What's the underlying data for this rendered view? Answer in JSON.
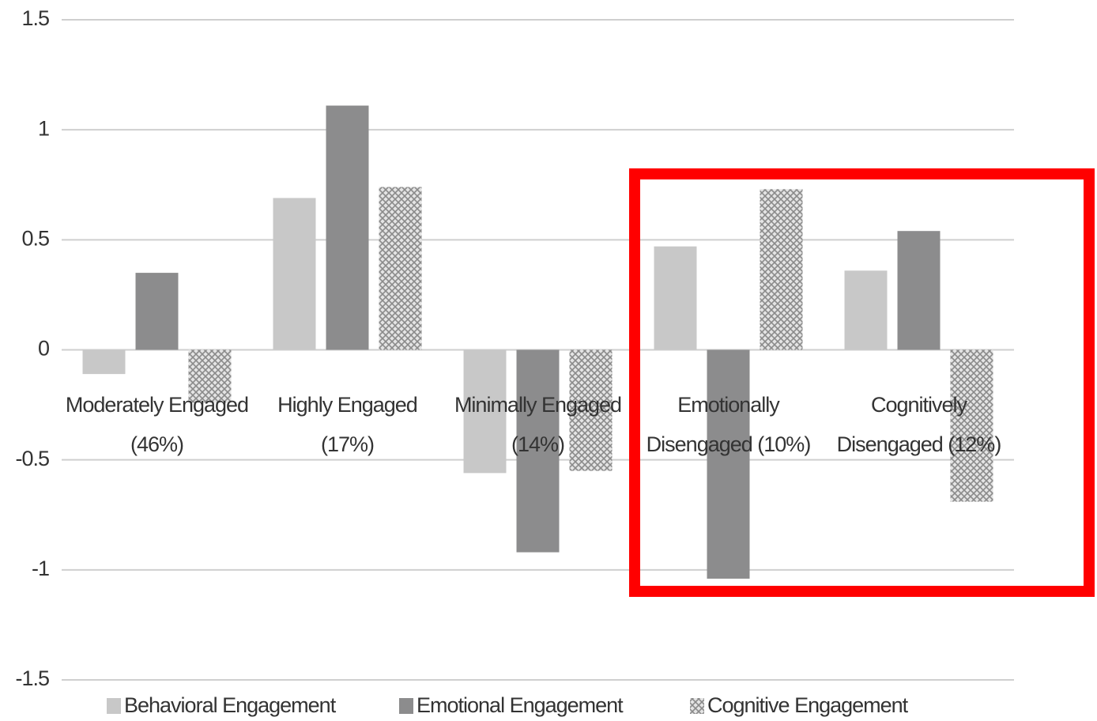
{
  "chart_data": {
    "type": "bar",
    "categories": [
      "Moderately Engaged (46%)",
      "Highly Engaged (17%)",
      "Minimally Engaged (14%)",
      "Emotionally Disengaged (10%)",
      "Cognitively Disengaged (12%)"
    ],
    "series": [
      {
        "name": "Behavioral Engagement",
        "color": "#c8c8c8",
        "values": [
          -0.11,
          0.69,
          -0.56,
          0.47,
          0.36
        ]
      },
      {
        "name": "Emotional Engagement",
        "color": "#8c8c8d",
        "values": [
          0.35,
          1.11,
          -0.92,
          -1.04,
          0.54
        ]
      },
      {
        "name": "Cognitive Engagement",
        "color": "#a6a6a6",
        "values": [
          -0.24,
          0.74,
          -0.55,
          0.73,
          -0.69
        ]
      }
    ],
    "ylim": [
      -1.5,
      1.5
    ],
    "yticks": [
      1.5,
      1,
      0.5,
      0,
      -0.5,
      -1,
      -1.5
    ],
    "grid": true,
    "legend": "bottom"
  }
}
